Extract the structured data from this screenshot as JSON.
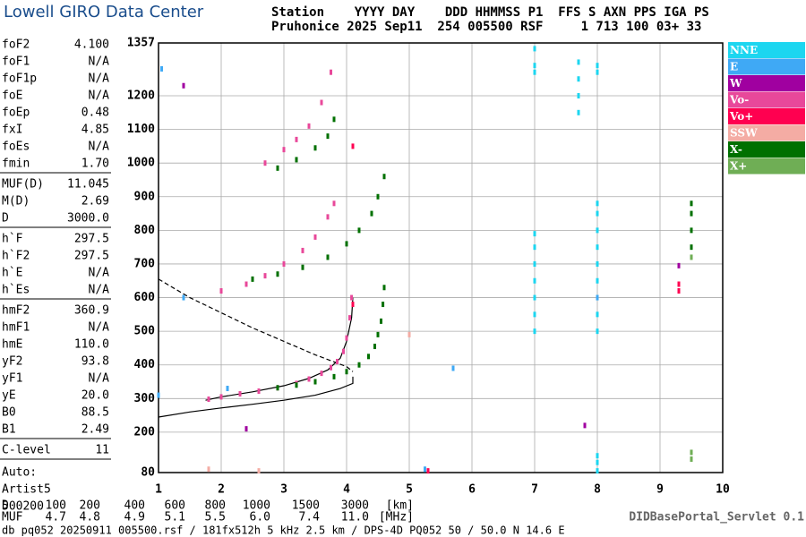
{
  "header": {
    "logo": "Lowell GIRO Data Center",
    "line1": "Station    YYYY DAY    DDD HHMMSS P1  FFS S AXN PPS IGA PS",
    "line2": "Pruhonice 2025 Sep11  254 005500 RSF     1 713 100 03+ 33"
  },
  "parameters": [
    [
      [
        "foF2",
        "4.100"
      ],
      [
        "foF1",
        "N/A"
      ],
      [
        "foF1p",
        "N/A"
      ],
      [
        "foE",
        "N/A"
      ],
      [
        "foEp",
        "0.48"
      ],
      [
        "fxI",
        "4.85"
      ],
      [
        "foEs",
        "N/A"
      ],
      [
        "fmin",
        "1.70"
      ]
    ],
    [
      [
        "MUF(D)",
        "11.045"
      ],
      [
        "M(D)",
        "2.69"
      ],
      [
        "D",
        "3000.0"
      ]
    ],
    [
      [
        "h`F",
        "297.5"
      ],
      [
        "h`F2",
        "297.5"
      ],
      [
        "h`E",
        "N/A"
      ],
      [
        "h`Es",
        "N/A"
      ]
    ],
    [
      [
        "hmF2",
        "360.9"
      ],
      [
        "hmF1",
        "N/A"
      ],
      [
        "hmE",
        "110.0"
      ],
      [
        "yF2",
        "93.8"
      ],
      [
        "yF1",
        "N/A"
      ],
      [
        "yE",
        "20.0"
      ],
      [
        "B0",
        "88.5"
      ],
      [
        "B1",
        "2.49"
      ]
    ],
    [
      [
        "C-level",
        "11"
      ]
    ]
  ],
  "autoscaling": [
    "Auto:",
    "Artist5",
    "500200"
  ],
  "chart_data": {
    "type": "scatter",
    "xlim": [
      1,
      10
    ],
    "xticks": [
      1,
      2,
      3,
      4,
      5,
      6,
      7,
      8,
      9,
      10
    ],
    "ylim": [
      80,
      1357
    ],
    "yticks": [
      80,
      200,
      300,
      400,
      500,
      600,
      700,
      800,
      900,
      1000,
      1100,
      1200,
      1357
    ],
    "grid": true,
    "legend": "right",
    "series": [
      {
        "name": "NNE",
        "color": "#1cd6f0",
        "x": [
          7,
          7,
          7,
          7,
          7,
          7,
          7,
          7,
          7,
          7,
          8,
          8,
          8,
          8,
          8,
          8,
          8,
          8,
          8,
          8,
          8,
          8,
          8,
          8,
          7.7,
          7.7,
          7.7,
          7.7
        ],
        "y": [
          500,
          550,
          600,
          650,
          700,
          750,
          790,
          1270,
          1290,
          1340,
          500,
          550,
          600,
          650,
          700,
          750,
          800,
          850,
          880,
          85,
          110,
          130,
          1270,
          1290,
          1150,
          1200,
          1250,
          1300
        ]
      },
      {
        "name": "E",
        "color": "#3fa9f5",
        "x": [
          1,
          1.05,
          5.7,
          5.25,
          8,
          1.4,
          2.1
        ],
        "y": [
          310,
          1280,
          390,
          90,
          600,
          600,
          330
        ]
      },
      {
        "name": "W",
        "color": "#a000a0",
        "x": [
          2.4,
          9.3,
          1.4,
          7.8
        ],
        "y": [
          210,
          695,
          1230,
          220
        ]
      },
      {
        "name": "Vo-",
        "color": "#e8489a",
        "x": [
          1.8,
          2,
          2.3,
          2.6,
          2.9,
          3.2,
          3.4,
          3.6,
          3.75,
          3.85,
          3.95,
          4,
          4.05,
          4.08,
          2,
          2.4,
          2.7,
          3,
          3.3,
          3.5,
          3.7,
          3.8,
          2.7,
          3,
          3.2,
          3.4,
          3.6,
          3.75
        ],
        "y": [
          298,
          305,
          314,
          322,
          332,
          345,
          358,
          375,
          392,
          410,
          440,
          480,
          540,
          600,
          620,
          640,
          665,
          700,
          740,
          780,
          840,
          880,
          1000,
          1040,
          1070,
          1110,
          1180,
          1270
        ]
      },
      {
        "name": "Vo+",
        "color": "#ff0050",
        "x": [
          4.1,
          4.1,
          9.3,
          9.3,
          5.3
        ],
        "y": [
          1050,
          580,
          640,
          620,
          85
        ]
      },
      {
        "name": "SSW",
        "color": "#f4aca4",
        "x": [
          5,
          2.6,
          1.8
        ],
        "y": [
          490,
          85,
          90
        ]
      },
      {
        "name": "X-",
        "color": "#007000",
        "x": [
          2.9,
          3.2,
          3.5,
          3.8,
          4,
          4.2,
          4.35,
          4.45,
          4.5,
          4.55,
          4.58,
          4.6,
          2.5,
          2.9,
          3.3,
          3.7,
          4,
          4.2,
          4.4,
          4.5,
          4.6,
          2.9,
          3.2,
          3.5,
          3.7,
          3.8,
          9.5,
          9.5,
          9.5,
          9.5
        ],
        "y": [
          332,
          340,
          350,
          365,
          380,
          400,
          425,
          455,
          490,
          530,
          580,
          630,
          655,
          670,
          690,
          720,
          760,
          800,
          850,
          900,
          960,
          985,
          1010,
          1045,
          1080,
          1130,
          750,
          800,
          850,
          880
        ]
      },
      {
        "name": "X+",
        "color": "#6fae55",
        "x": [
          9.5,
          9.5,
          9.5
        ],
        "y": [
          120,
          140,
          720
        ]
      }
    ],
    "profile_curves": [
      {
        "dashed": false,
        "x": [
          1.75,
          2,
          2.5,
          3,
          3.4,
          3.7,
          3.9,
          4,
          4.08,
          4.1
        ],
        "y": [
          295,
          305,
          320,
          338,
          360,
          385,
          420,
          470,
          540,
          600
        ]
      },
      {
        "dashed": false,
        "x": [
          1,
          1.5,
          2,
          2.5,
          3,
          3.5,
          3.9,
          4.1,
          4.1
        ],
        "y": [
          245,
          260,
          272,
          283,
          295,
          310,
          330,
          345,
          365
        ]
      },
      {
        "dashed": true,
        "x": [
          1,
          1.5,
          2,
          2.5,
          3,
          3.5,
          4,
          4.1
        ],
        "y": [
          655,
          600,
          555,
          510,
          470,
          430,
          395,
          380
        ]
      }
    ]
  },
  "footer": {
    "d_row": [
      "D",
      "100",
      "200",
      "400",
      "600",
      "800",
      "1000",
      "1500",
      "3000",
      "[km]"
    ],
    "muf_row": [
      "MUF",
      "4.7",
      "4.8",
      "4.9",
      "5.1",
      "5.5",
      "6.0",
      "7.4",
      "11.0",
      "[MHz]"
    ],
    "servlet": "DIDBasePortal_Servlet 0.1",
    "file": "db pq052 20250911 005500.rsf / 181fx512h 5 kHz 2.5 km / DPS-4D PQ052 50 / 50.0 N 14.6 E"
  }
}
